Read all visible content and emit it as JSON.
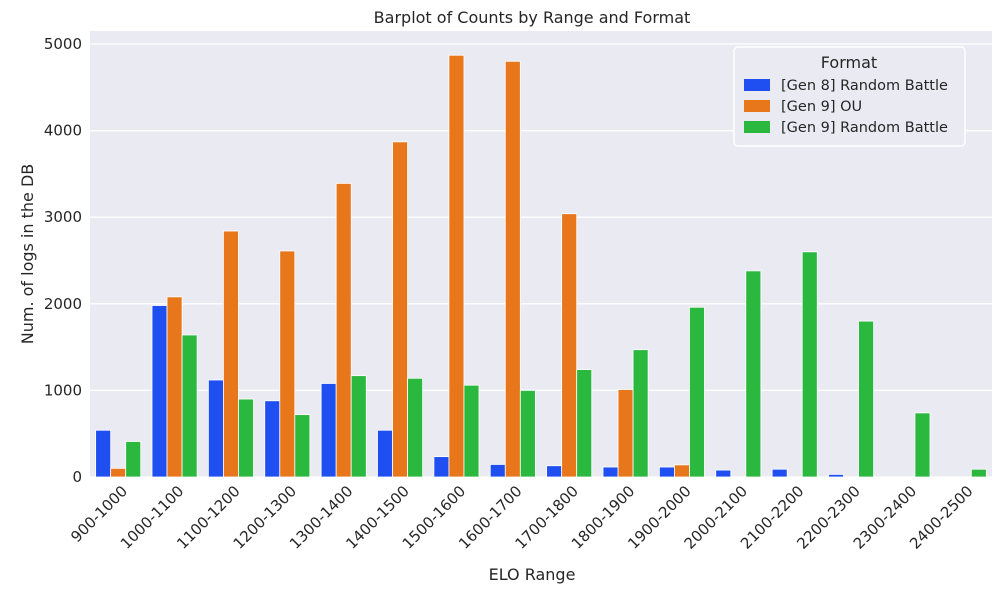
{
  "chart_data": {
    "type": "bar",
    "title": "Barplot of Counts by Range and Format",
    "xlabel": "ELO Range",
    "ylabel": "Num. of logs in the DB",
    "ylim": [
      0,
      5150
    ],
    "yticks": [
      0,
      1000,
      2000,
      3000,
      4000,
      5000
    ],
    "grid": true,
    "legend": {
      "title": "Format",
      "placement": "top-right"
    },
    "categories": [
      "900-1000",
      "1000-1100",
      "1100-1200",
      "1200-1300",
      "1300-1400",
      "1400-1500",
      "1500-1600",
      "1600-1700",
      "1700-1800",
      "1800-1900",
      "1900-2000",
      "2000-2100",
      "2100-2200",
      "2200-2300",
      "2300-2400",
      "2400-2500"
    ],
    "series": [
      {
        "name": "[Gen 8] Random Battle",
        "color": "#1f4ff0",
        "values": [
          540,
          1980,
          1120,
          880,
          1080,
          540,
          235,
          145,
          130,
          115,
          115,
          80,
          90,
          30,
          null,
          null
        ]
      },
      {
        "name": "[Gen 9] OU",
        "color": "#e8761a",
        "values": [
          100,
          2080,
          2840,
          2610,
          3390,
          3870,
          4870,
          4800,
          3040,
          1010,
          140,
          null,
          null,
          null,
          null,
          null
        ]
      },
      {
        "name": "[Gen 9] Random Battle",
        "color": "#2ab83e",
        "values": [
          410,
          1640,
          900,
          720,
          1170,
          1140,
          1060,
          1000,
          1240,
          1470,
          1960,
          2380,
          2600,
          1800,
          740,
          90
        ]
      }
    ]
  }
}
